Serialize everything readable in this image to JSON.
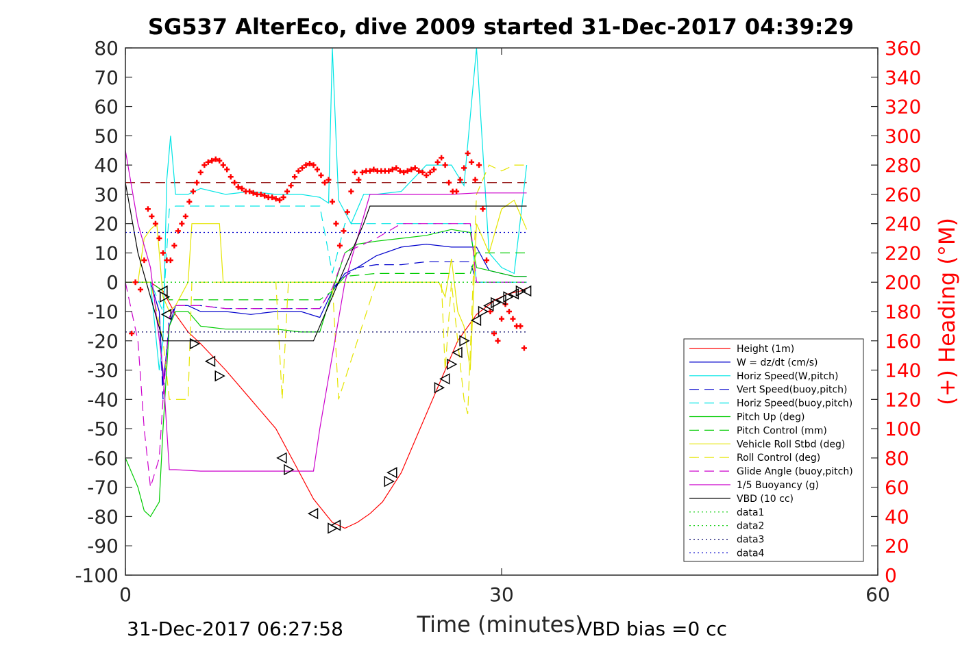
{
  "title": "SG537 AlterEco, dive 2009 started 31-Dec-2017 04:39:29",
  "footer_left": "31-Dec-2017 06:27:58",
  "footer_right": "VBD bias =0 cc",
  "chart_data": {
    "type": "line",
    "xlabel": "Time (minutes)",
    "ylabel_right": "(+) Heading (°M)",
    "xlim": [
      0,
      60
    ],
    "ylim_left": [
      -100,
      80
    ],
    "ylim_right": [
      0,
      360
    ],
    "x_ticks": [
      "0",
      "30",
      "60"
    ],
    "y_ticks_left": [
      "80",
      "70",
      "60",
      "50",
      "40",
      "30",
      "20",
      "10",
      "0",
      "-10",
      "-20",
      "-30",
      "-40",
      "-50",
      "-60",
      "-70",
      "-80",
      "-90",
      "-100"
    ],
    "y_ticks_right": [
      "360",
      "340",
      "320",
      "300",
      "280",
      "260",
      "240",
      "220",
      "200",
      "180",
      "160",
      "140",
      "120",
      "100",
      "80",
      "60",
      "40",
      "20",
      "0"
    ],
    "grid": false,
    "legend_position": "bottom-right",
    "series": [
      {
        "name": "Height (1m)",
        "color": "#ff0000",
        "style": "solid",
        "x": [
          0,
          1,
          2,
          3,
          4,
          5,
          6,
          8,
          10,
          12,
          13.5,
          15,
          16.5,
          17.5,
          18.5,
          19.5,
          20.5,
          22,
          23.5,
          25,
          26.5,
          28,
          29.5,
          30.5,
          31.5,
          32
        ],
        "y": [
          0,
          0,
          0,
          -3,
          -11,
          -17,
          -21,
          -30,
          -40,
          -50,
          -62,
          -74,
          -82,
          -84,
          -82,
          -79,
          -75,
          -65,
          -50,
          -35,
          -20,
          -11,
          -6,
          -4,
          -3,
          -2
        ]
      },
      {
        "name": "W = dz/dt (cm/s)",
        "color": "#0000cc",
        "style": "solid",
        "x": [
          0,
          1,
          2,
          2.7,
          3,
          3.5,
          4,
          5,
          6,
          8,
          10,
          12,
          14,
          15.5,
          16.5,
          17.5,
          18.5,
          20,
          22,
          24,
          26,
          28,
          29,
          30,
          31,
          32
        ],
        "y": [
          0,
          0,
          0,
          -10,
          -35,
          -15,
          -8,
          -8,
          -10,
          -10,
          -11,
          -10,
          -10,
          -12,
          -3,
          3,
          5,
          9,
          12,
          13,
          12,
          12,
          4,
          3,
          2,
          2
        ]
      },
      {
        "name": "Horiz Speed(W,pitch)",
        "color": "#00e5e5",
        "style": "solid",
        "x": [
          0,
          1,
          2,
          2.7,
          3,
          3.3,
          3.6,
          4,
          5,
          6,
          8,
          10,
          12,
          14,
          15.5,
          16.2,
          16.5,
          17,
          18,
          19,
          20,
          22,
          24,
          26,
          27,
          28,
          29,
          30,
          31,
          32
        ],
        "y": [
          0,
          0,
          0,
          -30,
          -20,
          35,
          50,
          30,
          30,
          32,
          30,
          31,
          30,
          30,
          29,
          27,
          80,
          28,
          20,
          30,
          30,
          31,
          40,
          40,
          33,
          80,
          10,
          5,
          3,
          40
        ]
      },
      {
        "name": "Vert Speed(buoy,pitch)",
        "color": "#0000cc",
        "style": "dashed",
        "x": [
          0,
          1,
          2,
          2.7,
          3,
          3.5,
          4,
          6,
          8,
          10,
          12,
          14,
          15.5,
          16.5,
          17.5,
          18.5,
          20,
          22,
          24,
          26,
          27.5,
          28,
          32
        ],
        "y": [
          0,
          0,
          0,
          -10,
          -40,
          -12,
          -8,
          -8,
          -9,
          -9,
          -9,
          -9,
          -9,
          -2,
          2,
          5,
          6,
          6,
          7,
          7,
          7,
          0,
          0
        ]
      },
      {
        "name": "Horiz Speed(buoy,pitch)",
        "color": "#00e5e5",
        "style": "dashed",
        "x": [
          0,
          2,
          3,
          3.5,
          4,
          6,
          8,
          10,
          12,
          14,
          15.5,
          16.5,
          17.5,
          20,
          22,
          24,
          26,
          27.5,
          28,
          32
        ],
        "y": [
          0,
          0,
          -10,
          25,
          26,
          26,
          26,
          26,
          26,
          26,
          26,
          3,
          20,
          20,
          20,
          20,
          20,
          20,
          0,
          0
        ]
      },
      {
        "name": "Pitch Up (deg)",
        "color": "#00cc00",
        "style": "solid",
        "x": [
          0,
          1,
          1.5,
          2,
          2.7,
          3,
          3.5,
          4,
          5,
          6,
          8,
          10,
          12,
          14,
          15.5,
          16.5,
          17.5,
          18.5,
          20,
          22,
          24,
          26,
          27.5,
          28,
          29,
          30,
          31,
          32
        ],
        "y": [
          -60,
          -70,
          -78,
          -80,
          -75,
          -50,
          -15,
          -10,
          -10,
          -15,
          -16,
          -16,
          -16,
          -17,
          -17,
          -3,
          10,
          13,
          14,
          15,
          16,
          18,
          17,
          5,
          4,
          3,
          2,
          2
        ]
      },
      {
        "name": "Pitch Control (mm)",
        "color": "#00cc00",
        "style": "dashed",
        "x": [
          0,
          2,
          3,
          3.5,
          6,
          15.5,
          16.5,
          17.5,
          20,
          27.5,
          28,
          32
        ],
        "y": [
          0,
          0,
          -3,
          -6,
          -6,
          -6,
          -3,
          2,
          3,
          3,
          10,
          10
        ]
      },
      {
        "name": "Vehicle Roll Stbd (deg)",
        "color": "#e5e500",
        "style": "solid",
        "x": [
          0,
          1,
          1.5,
          2,
          2.5,
          3,
          3.5,
          4,
          5,
          5.3,
          5.6,
          7.5,
          7.8,
          8.5,
          10,
          12,
          13,
          14,
          15.5,
          16.5,
          17.5,
          20,
          22,
          24,
          25,
          25.5,
          26,
          26.5,
          27,
          27.5,
          28,
          29,
          30,
          31,
          32
        ],
        "y": [
          0,
          0,
          15,
          18,
          20,
          -5,
          -10,
          -8,
          0,
          20,
          20,
          20,
          0,
          0,
          0,
          0,
          0,
          0,
          0,
          0,
          0,
          0,
          0,
          0,
          0,
          -5,
          8,
          -10,
          -15,
          -30,
          20,
          10,
          25,
          28,
          18
        ]
      },
      {
        "name": "Roll Control (deg)",
        "color": "#e5e500",
        "style": "dashed",
        "x": [
          0,
          2,
          3,
          3.5,
          4,
          5,
          5.3,
          6,
          10,
          12,
          12.5,
          13,
          15.5,
          16.5,
          17,
          20,
          24,
          25.2,
          25.5,
          26,
          27,
          27.3,
          28,
          29,
          30,
          31,
          32
        ],
        "y": [
          0,
          0,
          -20,
          -40,
          -40,
          -40,
          0,
          0,
          0,
          0,
          -40,
          0,
          0,
          0,
          -40,
          0,
          0,
          0,
          -30,
          0,
          -40,
          -45,
          30,
          40,
          38,
          40,
          40
        ]
      },
      {
        "name": "Glide Angle (buoy,pitch)",
        "color": "#cc00cc",
        "style": "dashed",
        "x": [
          0,
          1,
          1.5,
          2,
          2.7,
          3,
          3.5,
          4,
          6,
          8,
          10,
          12,
          14,
          15.5,
          16.5,
          17.5,
          20,
          22,
          24,
          26,
          27.5,
          28,
          32
        ],
        "y": [
          0,
          -20,
          -50,
          -70,
          -60,
          -40,
          -12,
          -8,
          -8,
          -9,
          -9,
          -9,
          -9,
          -9,
          -2,
          10,
          15,
          20,
          20,
          20,
          20,
          0,
          0
        ]
      },
      {
        "name": "1/5 Buoyancy (g)",
        "color": "#cc00cc",
        "style": "solid",
        "x": [
          0,
          1,
          2,
          3,
          3.5,
          4,
          6,
          10,
          15,
          15.5,
          16.5,
          17.5,
          18.5,
          19.5,
          22,
          26,
          28,
          32
        ],
        "y": [
          45,
          20,
          5,
          -30,
          -64,
          -64,
          -64.5,
          -64.5,
          -64.5,
          -50,
          -25,
          0,
          15,
          30,
          30,
          30,
          30.5,
          30.5
        ]
      },
      {
        "name": "VBD (10 cc)",
        "color": "#000000",
        "style": "solid",
        "x": [
          0,
          1,
          2,
          3,
          15,
          16,
          17,
          18,
          19,
          19.5,
          32
        ],
        "y": [
          34,
          10,
          -5,
          -20,
          -20,
          -10,
          0,
          10,
          20,
          26,
          26
        ]
      },
      {
        "name": "data1",
        "color": "#00cc00",
        "style": "dotted",
        "x": [
          0,
          32
        ],
        "y": [
          0,
          0
        ]
      },
      {
        "name": "data2",
        "color": "#00cc00",
        "style": "dotted",
        "x": [
          0,
          32
        ],
        "y": [
          0,
          0
        ]
      },
      {
        "name": "data3",
        "color": "#000066",
        "style": "dotted",
        "x": [
          0,
          32
        ],
        "y": [
          -17,
          -17
        ]
      },
      {
        "name": "data4",
        "color": "#0000cc",
        "style": "dotted",
        "x": [
          0,
          32
        ],
        "y": [
          17,
          17
        ]
      }
    ],
    "reference_lines": [
      {
        "color": "#8b0000",
        "style": "dashed",
        "axis": "right",
        "y": 268,
        "x": [
          0,
          32
        ]
      }
    ],
    "heading_points": {
      "color": "#ff0000",
      "axis": "right",
      "marker": "+",
      "x": [
        0.5,
        0.8,
        1.2,
        1.5,
        1.8,
        2.1,
        2.4,
        2.7,
        3.0,
        3.3,
        3.6,
        3.9,
        4.2,
        4.5,
        4.8,
        5.1,
        5.4,
        5.7,
        6.0,
        6.3,
        6.6,
        6.9,
        7.2,
        7.5,
        7.8,
        8.1,
        8.4,
        8.7,
        9,
        9.3,
        9.6,
        9.9,
        10.2,
        10.5,
        10.8,
        11.1,
        11.4,
        11.7,
        12,
        12.3,
        12.6,
        12.9,
        13.2,
        13.5,
        13.8,
        14.1,
        14.4,
        14.7,
        15,
        15.3,
        15.6,
        15.9,
        16.2,
        16.5,
        16.8,
        17.1,
        17.4,
        17.7,
        18,
        18.3,
        18.6,
        18.9,
        19.2,
        19.5,
        19.8,
        20.1,
        20.4,
        20.7,
        21,
        21.3,
        21.6,
        21.9,
        22.2,
        22.5,
        22.8,
        23.1,
        23.4,
        23.7,
        24,
        24.3,
        24.6,
        24.9,
        25.2,
        25.5,
        25.8,
        26.1,
        26.4,
        26.7,
        27,
        27.3,
        27.6,
        27.9,
        28.2,
        28.5,
        28.8,
        29.1,
        29.4,
        29.7,
        30,
        30.3,
        30.6,
        30.9,
        31.2,
        31.5,
        31.8
      ],
      "y": [
        165,
        200,
        195,
        215,
        250,
        245,
        240,
        230,
        220,
        215,
        215,
        225,
        235,
        240,
        245,
        255,
        262,
        268,
        275,
        280,
        282,
        283,
        284,
        283,
        280,
        277,
        272,
        268,
        265,
        264,
        262,
        262,
        261,
        260,
        260,
        259,
        258,
        258,
        257,
        256,
        258,
        262,
        266,
        272,
        276,
        278,
        280,
        281,
        280,
        277,
        273,
        268,
        270,
        255,
        240,
        225,
        235,
        248,
        262,
        275,
        270,
        275,
        276,
        276,
        277,
        276,
        276,
        276,
        276,
        277,
        278,
        276,
        275,
        276,
        277,
        278,
        276,
        275,
        273,
        275,
        277,
        282,
        285,
        280,
        268,
        262,
        262,
        270,
        278,
        288,
        282,
        270,
        280,
        250,
        215,
        180,
        165,
        160,
        175,
        185,
        180,
        175,
        170,
        170,
        155
      ]
    },
    "triangle_markers": {
      "color": "#000000",
      "x": [
        3,
        3.1,
        3.3,
        5.5,
        6.8,
        7.5,
        12.5,
        13,
        15,
        16.5,
        16.8,
        21,
        21.3,
        25,
        25.5,
        26,
        26.5,
        27,
        28,
        28.5,
        29,
        29.5,
        30,
        30.5,
        31,
        31.5,
        32
      ],
      "y": [
        -3,
        -5,
        -11,
        -21,
        -27,
        -32,
        -60,
        -64,
        -79,
        -84,
        -83,
        -68,
        -65,
        -36,
        -33,
        -28,
        -24,
        -20,
        -13,
        -10,
        -8,
        -7,
        -6,
        -5,
        -4,
        -3,
        -3
      ]
    }
  }
}
